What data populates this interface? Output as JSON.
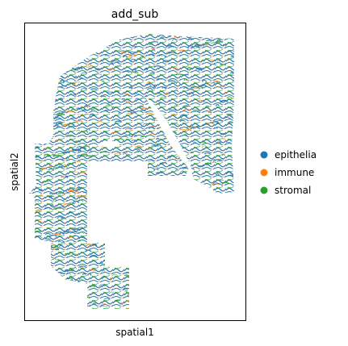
{
  "chart_data": {
    "type": "scatter",
    "title": "add_sub",
    "xlabel": "spatial1",
    "ylabel": "spatial2",
    "grid": false,
    "ticks_shown": false,
    "legend_position": "right",
    "series": [
      {
        "name": "epithelia",
        "color": "#1f77b4"
      },
      {
        "name": "immune",
        "color": "#ff7f0e"
      },
      {
        "name": "stromal",
        "color": "#2ca02c"
      }
    ]
  }
}
